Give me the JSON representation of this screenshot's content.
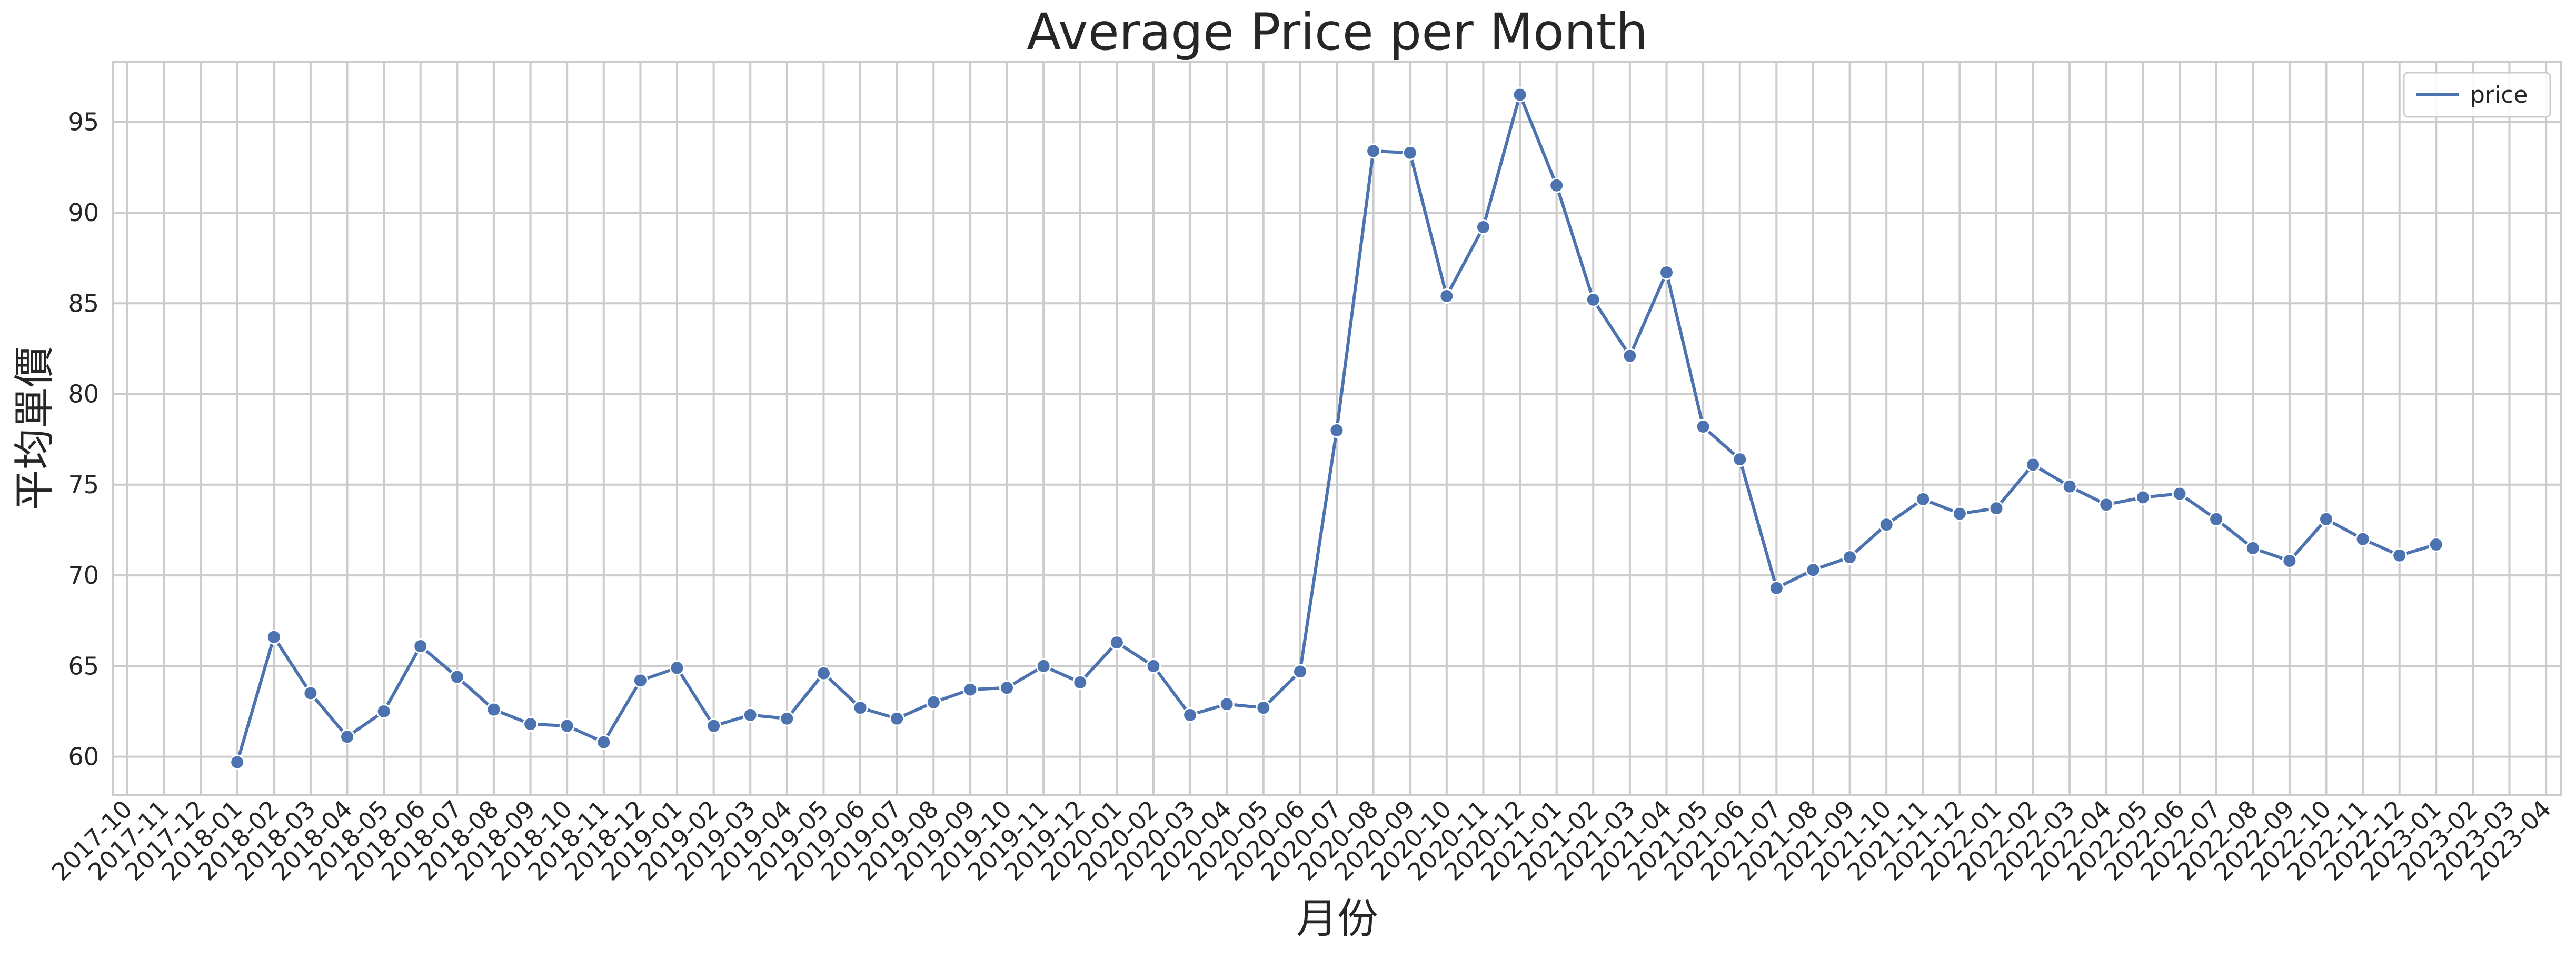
{
  "chart_data": {
    "type": "line",
    "title": "Average Price per Month",
    "xlabel": "月份",
    "ylabel": "平均單價",
    "x": [
      "2017-10",
      "2017-11",
      "2017-12",
      "2018-01",
      "2018-02",
      "2018-03",
      "2018-04",
      "2018-05",
      "2018-06",
      "2018-07",
      "2018-08",
      "2018-09",
      "2018-10",
      "2018-11",
      "2018-12",
      "2019-01",
      "2019-02",
      "2019-03",
      "2019-04",
      "2019-05",
      "2019-06",
      "2019-07",
      "2019-08",
      "2019-09",
      "2019-10",
      "2019-11",
      "2019-12",
      "2020-01",
      "2020-02",
      "2020-03",
      "2020-04",
      "2020-05",
      "2020-06",
      "2020-07",
      "2020-08",
      "2020-09",
      "2020-10",
      "2020-11",
      "2020-12",
      "2021-01",
      "2021-02",
      "2021-03",
      "2021-04",
      "2021-05",
      "2021-06",
      "2021-07",
      "2021-08",
      "2021-09",
      "2021-10",
      "2021-11",
      "2021-12",
      "2022-01",
      "2022-02",
      "2022-03",
      "2022-04",
      "2022-05",
      "2022-06",
      "2022-07",
      "2022-08",
      "2022-09",
      "2022-10",
      "2022-11",
      "2022-12",
      "2023-01",
      "2023-02",
      "2023-03",
      "2023-04"
    ],
    "series": [
      {
        "name": "price",
        "color": "#4C72B0",
        "values": [
          null,
          null,
          null,
          59.7,
          66.6,
          63.5,
          61.1,
          62.5,
          66.1,
          64.4,
          62.6,
          61.8,
          61.7,
          60.8,
          64.2,
          64.9,
          61.7,
          62.3,
          62.1,
          64.6,
          62.7,
          62.1,
          63.0,
          63.7,
          63.8,
          65.0,
          64.1,
          66.3,
          65.0,
          62.3,
          62.9,
          62.7,
          64.7,
          78.0,
          93.4,
          93.3,
          85.4,
          89.2,
          96.5,
          91.5,
          85.2,
          82.1,
          86.7,
          78.2,
          76.4,
          69.3,
          70.3,
          71.0,
          72.8,
          74.2,
          73.4,
          73.7,
          76.1,
          74.9,
          73.9,
          74.3,
          74.5,
          73.1,
          71.5,
          70.8,
          73.1,
          72.0,
          71.1,
          71.7,
          null,
          null,
          null
        ]
      }
    ],
    "yticks": [
      60,
      65,
      70,
      75,
      80,
      85,
      90,
      95
    ],
    "ylim": [
      57.9,
      98.3
    ],
    "grid": true,
    "legend_position": "top-right"
  }
}
